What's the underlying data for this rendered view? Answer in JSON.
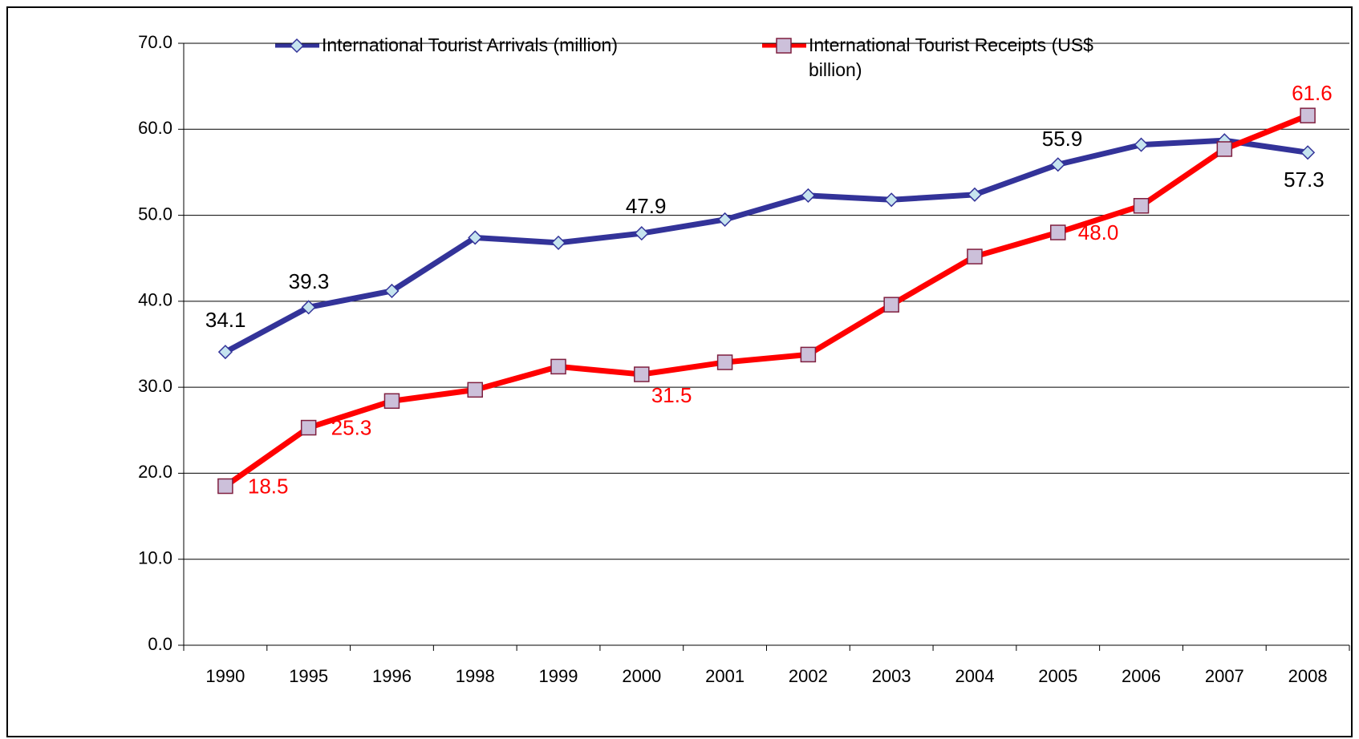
{
  "chart_data": {
    "type": "line",
    "categories": [
      "1990",
      "1995",
      "1996",
      "1998",
      "1999",
      "2000",
      "2001",
      "2002",
      "2003",
      "2004",
      "2005",
      "2006",
      "2007",
      "2008"
    ],
    "series": [
      {
        "name": "International Tourist Arrivals (million)",
        "color": "#333399",
        "marker": "diamond",
        "marker_fill": "#c6e4ef",
        "label_color": "#000000",
        "values": [
          34.1,
          39.3,
          41.2,
          47.4,
          46.8,
          47.9,
          49.5,
          52.3,
          51.8,
          52.4,
          55.9,
          58.2,
          58.7,
          57.3
        ],
        "value_labels": [
          "34.1",
          "39.3",
          null,
          null,
          null,
          "47.9",
          null,
          null,
          null,
          null,
          "55.9",
          null,
          null,
          "57.3"
        ]
      },
      {
        "name": "International Tourist Receipts (US$ billion)",
        "color": "#ff0000",
        "marker": "square",
        "marker_fill": "#ccc0da",
        "label_color": "#ff0000",
        "values": [
          18.5,
          25.3,
          28.4,
          29.7,
          32.4,
          31.5,
          32.9,
          33.8,
          39.6,
          45.2,
          48.0,
          51.1,
          57.7,
          61.6
        ],
        "value_labels": [
          "18.5",
          "25.3",
          null,
          null,
          null,
          "31.5",
          null,
          null,
          null,
          null,
          "48.0",
          null,
          null,
          "61.6"
        ]
      }
    ],
    "ylim": [
      0,
      70
    ],
    "yticks": [
      {
        "value": 0,
        "label": "0.0"
      },
      {
        "value": 10,
        "label": "10.0"
      },
      {
        "value": 20,
        "label": "20.0"
      },
      {
        "value": 30,
        "label": "30.0"
      },
      {
        "value": 40,
        "label": "40.0"
      },
      {
        "value": 50,
        "label": "50.0"
      },
      {
        "value": 60,
        "label": "60.0"
      },
      {
        "value": 70,
        "label": "70.0"
      }
    ],
    "grid": true,
    "legend": "top"
  }
}
